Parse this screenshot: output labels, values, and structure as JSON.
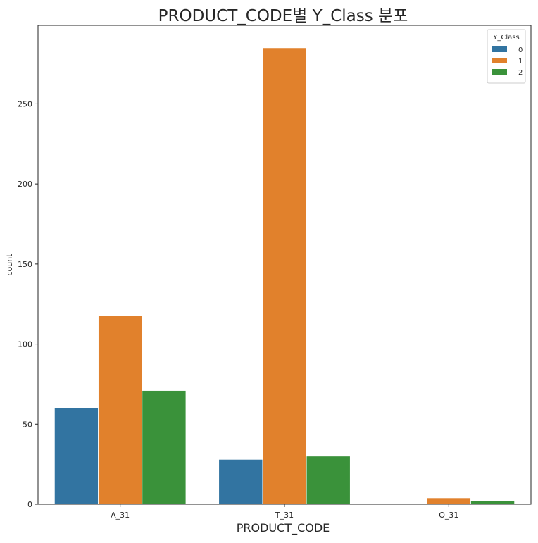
{
  "chart_data": {
    "type": "bar",
    "title": "PRODUCT_CODE별 Y_Class 분포",
    "xlabel": "PRODUCT_CODE",
    "ylabel": "count",
    "categories": [
      "A_31",
      "T_31",
      "O_31"
    ],
    "ylim": [
      0,
      299
    ],
    "yticks": [
      0,
      50,
      100,
      150,
      200,
      250
    ],
    "grid": false,
    "legend": {
      "title": "Y_Class",
      "placement": "top-right"
    },
    "series": [
      {
        "name": "0",
        "color": "#3274a1",
        "values": [
          60,
          28,
          0
        ]
      },
      {
        "name": "1",
        "color": "#e1812c",
        "values": [
          118,
          285,
          4
        ]
      },
      {
        "name": "2",
        "color": "#3a923a",
        "values": [
          71,
          30,
          2
        ]
      }
    ]
  }
}
